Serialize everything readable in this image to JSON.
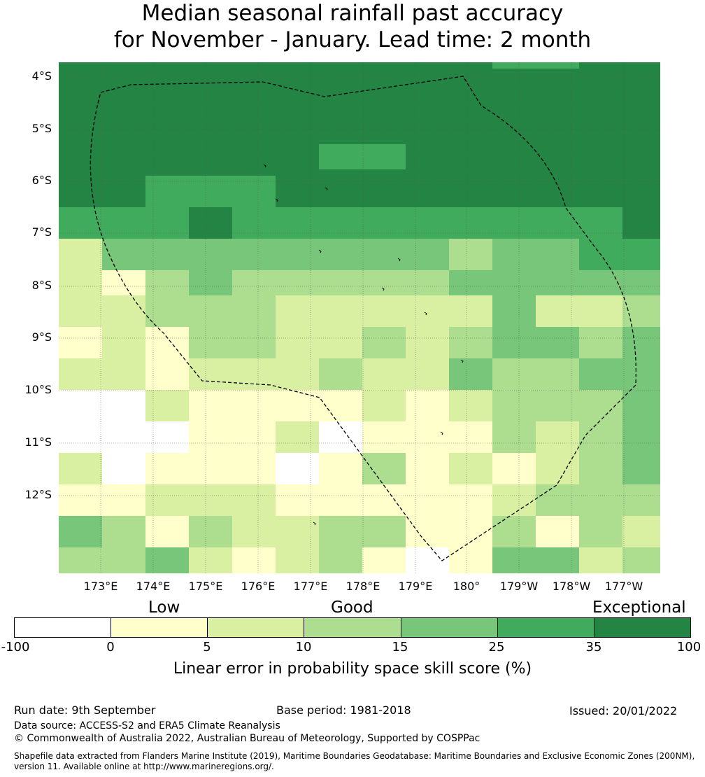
{
  "title": {
    "line1": "Median seasonal rainfall past accuracy",
    "line2": "for November - January. Lead time: 2 month"
  },
  "map": {
    "lat_labels": [
      "4°S",
      "5°S",
      "6°S",
      "7°S",
      "8°S",
      "9°S",
      "10°S",
      "11°S",
      "12°S"
    ],
    "lon_labels": [
      "173°E",
      "174°E",
      "175°E",
      "176°E",
      "177°E",
      "178°E",
      "179°E",
      "180°",
      "179°W",
      "178°W",
      "177°W"
    ],
    "cell_grid": [
      [
        6,
        6,
        6,
        6,
        6,
        6,
        6,
        6,
        6,
        6,
        5,
        5,
        6,
        6
      ],
      [
        6,
        6,
        6,
        6,
        6,
        6,
        6,
        6,
        6,
        6,
        6,
        6,
        6,
        6
      ],
      [
        6,
        6,
        6,
        6,
        6,
        6,
        6,
        6,
        6,
        6,
        6,
        6,
        6,
        6
      ],
      [
        6,
        6,
        6,
        6,
        6,
        6,
        6,
        6,
        6,
        6,
        6,
        6,
        6,
        6
      ],
      [
        6,
        6,
        6,
        6,
        6,
        6,
        6,
        6,
        6,
        6,
        6,
        6,
        6,
        6
      ],
      [
        6,
        6,
        6,
        6,
        6,
        6,
        6,
        6,
        6,
        6,
        6,
        6,
        6,
        6
      ],
      [
        6,
        6,
        6,
        6,
        6,
        6,
        6,
        6,
        6,
        6,
        6,
        6,
        6,
        6
      ],
      [
        6,
        6,
        6,
        6,
        6,
        6,
        6,
        6,
        6,
        6,
        6,
        6,
        6,
        6
      ],
      [
        6,
        6,
        6,
        6,
        6,
        6,
        6,
        6,
        6,
        6,
        6,
        6,
        6,
        6
      ],
      [
        6,
        6,
        6,
        6,
        6,
        6,
        6,
        6,
        6,
        6,
        6,
        6,
        6,
        6
      ],
      [
        6,
        6,
        6,
        6,
        6,
        6,
        6,
        6,
        6,
        6,
        6,
        6,
        6,
        6
      ],
      [
        6,
        6,
        6,
        6,
        6,
        6,
        6,
        6,
        6,
        6,
        6,
        6,
        6,
        6
      ],
      [
        6,
        6,
        6,
        6,
        6,
        6,
        6,
        6,
        6,
        6,
        6,
        6,
        6,
        6
      ],
      [
        6,
        6,
        6,
        6,
        6,
        6,
        5,
        5,
        6,
        6,
        6,
        6,
        6,
        6
      ],
      [
        6,
        6,
        6,
        6,
        6,
        6,
        5,
        5,
        6,
        6,
        6,
        6,
        6,
        6
      ],
      [
        6,
        6,
        6,
        6,
        6,
        6,
        5,
        5,
        6,
        6,
        6,
        6,
        6,
        6
      ],
      [
        6,
        6,
        6,
        6,
        6,
        6,
        5,
        5,
        6,
        6,
        6,
        6,
        6,
        6
      ],
      [
        6,
        6,
        6,
        6,
        6,
        6,
        6,
        6,
        6,
        6,
        6,
        6,
        6,
        6
      ],
      [
        6,
        6,
        5,
        5,
        5,
        6,
        6,
        6,
        6,
        6,
        6,
        6,
        6,
        6
      ],
      [
        6,
        6,
        5,
        5,
        5,
        6,
        6,
        6,
        6,
        6,
        6,
        6,
        6,
        6
      ],
      [
        6,
        6,
        5,
        5,
        5,
        6,
        6,
        6,
        6,
        6,
        6,
        6,
        6,
        6
      ],
      [
        6,
        6,
        5,
        5,
        5,
        6,
        6,
        6,
        6,
        6,
        6,
        6,
        6,
        6
      ],
      [
        6,
        6,
        5,
        5,
        5,
        6,
        6,
        6,
        6,
        6,
        6,
        6,
        6,
        6
      ],
      [
        5,
        5,
        5,
        6,
        5,
        5,
        5,
        5,
        5,
        5,
        5,
        5,
        5,
        6
      ],
      [
        5,
        5,
        5,
        6,
        5,
        5,
        5,
        5,
        5,
        5,
        5,
        5,
        5,
        6
      ],
      [
        5,
        5,
        5,
        6,
        5,
        5,
        5,
        5,
        5,
        5,
        5,
        5,
        5,
        6
      ],
      [
        5,
        5,
        5,
        6,
        5,
        5,
        5,
        5,
        5,
        5,
        5,
        5,
        5,
        6
      ],
      [
        5,
        5,
        5,
        6,
        5,
        5,
        5,
        5,
        5,
        5,
        5,
        5,
        5,
        6
      ],
      [
        2,
        4,
        4,
        4,
        4,
        4,
        4,
        4,
        4,
        3,
        4,
        4,
        5,
        5
      ],
      [
        2,
        4,
        4,
        4,
        4,
        4,
        4,
        4,
        4,
        3,
        4,
        4,
        5,
        5
      ],
      [
        2,
        4,
        4,
        4,
        4,
        4,
        4,
        4,
        4,
        3,
        4,
        4,
        5,
        5
      ],
      [
        2,
        4,
        4,
        4,
        4,
        4,
        4,
        4,
        4,
        3,
        4,
        4,
        5,
        5
      ],
      [
        2,
        4,
        4,
        4,
        4,
        4,
        4,
        4,
        4,
        3,
        4,
        4,
        5,
        5
      ],
      [
        2,
        1,
        3,
        4,
        3,
        3,
        3,
        3,
        3,
        4,
        4,
        4,
        4,
        4
      ],
      [
        2,
        1,
        3,
        4,
        3,
        3,
        3,
        3,
        3,
        4,
        4,
        4,
        4,
        4
      ],
      [
        2,
        1,
        3,
        4,
        3,
        3,
        3,
        3,
        3,
        4,
        4,
        4,
        4,
        4
      ],
      [
        2,
        1,
        3,
        4,
        3,
        3,
        3,
        3,
        3,
        4,
        4,
        4,
        4,
        4
      ],
      [
        2,
        2,
        3,
        3,
        3,
        2,
        2,
        2,
        2,
        2,
        4,
        2,
        2,
        3
      ],
      [
        2,
        2,
        3,
        3,
        3,
        2,
        2,
        2,
        2,
        2,
        4,
        2,
        2,
        3
      ],
      [
        2,
        2,
        3,
        3,
        3,
        2,
        2,
        2,
        2,
        2,
        4,
        2,
        2,
        3
      ],
      [
        2,
        2,
        3,
        3,
        3,
        2,
        2,
        2,
        2,
        2,
        4,
        2,
        2,
        3
      ],
      [
        2,
        2,
        3,
        3,
        3,
        2,
        2,
        2,
        2,
        2,
        4,
        2,
        2,
        3
      ],
      [
        1,
        2,
        1,
        3,
        3,
        2,
        2,
        3,
        2,
        3,
        4,
        4,
        3,
        4
      ],
      [
        1,
        2,
        1,
        3,
        3,
        2,
        2,
        3,
        2,
        3,
        4,
        4,
        3,
        4
      ],
      [
        1,
        2,
        1,
        3,
        3,
        2,
        2,
        3,
        2,
        3,
        4,
        4,
        3,
        4
      ],
      [
        1,
        2,
        1,
        3,
        3,
        2,
        2,
        3,
        2,
        3,
        4,
        4,
        3,
        4
      ],
      [
        1,
        2,
        1,
        3,
        3,
        2,
        2,
        3,
        2,
        3,
        4,
        4,
        3,
        4
      ],
      [
        2,
        2,
        1,
        2,
        2,
        2,
        3,
        2,
        2,
        4,
        3,
        3,
        4,
        4
      ],
      [
        2,
        2,
        1,
        2,
        2,
        2,
        3,
        2,
        2,
        4,
        3,
        3,
        4,
        4
      ],
      [
        2,
        2,
        1,
        2,
        2,
        2,
        3,
        2,
        2,
        4,
        3,
        3,
        4,
        4
      ],
      [
        2,
        2,
        1,
        2,
        2,
        2,
        3,
        2,
        2,
        4,
        3,
        3,
        4,
        4
      ],
      [
        2,
        2,
        1,
        2,
        2,
        2,
        3,
        2,
        2,
        4,
        3,
        3,
        4,
        4
      ],
      [
        0,
        0,
        2,
        1,
        1,
        1,
        1,
        2,
        1,
        2,
        3,
        3,
        3,
        4
      ],
      [
        0,
        0,
        2,
        1,
        1,
        1,
        1,
        2,
        1,
        2,
        3,
        3,
        3,
        4
      ],
      [
        0,
        0,
        2,
        1,
        1,
        1,
        1,
        2,
        1,
        2,
        3,
        3,
        3,
        4
      ],
      [
        0,
        0,
        2,
        1,
        1,
        1,
        1,
        2,
        1,
        2,
        3,
        3,
        3,
        4
      ],
      [
        0,
        0,
        2,
        1,
        1,
        1,
        1,
        2,
        1,
        2,
        3,
        3,
        3,
        4
      ],
      [
        0,
        0,
        0,
        1,
        1,
        2,
        0,
        1,
        1,
        1,
        3,
        2,
        3,
        4
      ],
      [
        0,
        0,
        0,
        1,
        1,
        2,
        0,
        1,
        1,
        1,
        3,
        2,
        3,
        4
      ],
      [
        0,
        0,
        0,
        1,
        1,
        2,
        0,
        1,
        1,
        1,
        3,
        2,
        3,
        4
      ],
      [
        0,
        0,
        0,
        1,
        1,
        2,
        0,
        1,
        1,
        1,
        3,
        2,
        3,
        4
      ],
      [
        0,
        0,
        0,
        1,
        1,
        2,
        0,
        1,
        1,
        1,
        3,
        2,
        3,
        4
      ],
      [
        2,
        0,
        1,
        1,
        1,
        0,
        1,
        3,
        1,
        2,
        1,
        2,
        3,
        4
      ],
      [
        2,
        0,
        1,
        1,
        1,
        0,
        1,
        3,
        1,
        2,
        1,
        2,
        3,
        4
      ],
      [
        2,
        0,
        1,
        1,
        1,
        0,
        1,
        3,
        1,
        2,
        1,
        2,
        3,
        4
      ],
      [
        2,
        0,
        1,
        1,
        1,
        0,
        1,
        3,
        1,
        2,
        1,
        2,
        3,
        4
      ],
      [
        2,
        0,
        1,
        1,
        1,
        0,
        1,
        3,
        1,
        2,
        1,
        2,
        3,
        4
      ],
      [
        1,
        1,
        2,
        2,
        2,
        1,
        1,
        1,
        1,
        1,
        2,
        3,
        3,
        3
      ],
      [
        1,
        1,
        2,
        2,
        2,
        1,
        1,
        1,
        1,
        1,
        2,
        3,
        3,
        3
      ],
      [
        1,
        1,
        2,
        2,
        2,
        1,
        1,
        1,
        1,
        1,
        2,
        3,
        3,
        3
      ],
      [
        1,
        1,
        2,
        2,
        2,
        1,
        1,
        1,
        1,
        1,
        2,
        3,
        3,
        3
      ],
      [
        1,
        1,
        2,
        2,
        2,
        1,
        1,
        1,
        1,
        1,
        2,
        3,
        3,
        3
      ],
      [
        4,
        3,
        1,
        3,
        2,
        2,
        3,
        3,
        1,
        1,
        3,
        1,
        3,
        2
      ],
      [
        4,
        3,
        1,
        3,
        2,
        2,
        3,
        3,
        1,
        1,
        3,
        1,
        3,
        2
      ],
      [
        4,
        3,
        1,
        3,
        2,
        2,
        3,
        3,
        1,
        1,
        3,
        1,
        3,
        2
      ],
      [
        4,
        3,
        1,
        3,
        2,
        2,
        3,
        3,
        1,
        1,
        3,
        1,
        3,
        2
      ],
      [
        4,
        3,
        1,
        3,
        2,
        2,
        3,
        3,
        1,
        1,
        3,
        1,
        3,
        2
      ],
      [
        3,
        3,
        4,
        2,
        1,
        2,
        3,
        1,
        0,
        1,
        4,
        4,
        2,
        3
      ],
      [
        3,
        3,
        4,
        2,
        1,
        2,
        3,
        1,
        0,
        1,
        4,
        4,
        2,
        3
      ],
      [
        3,
        3,
        4,
        2,
        1,
        2,
        3,
        1,
        0,
        1,
        4,
        4,
        2,
        3
      ],
      [
        3,
        3,
        4,
        2,
        1,
        2,
        3,
        1,
        0,
        1,
        4,
        4,
        2,
        3
      ]
    ]
  },
  "categories": {
    "low": "Low",
    "good": "Good",
    "exceptional": "Exceptional"
  },
  "colorbar": {
    "ticks": [
      "-100",
      "0",
      "5",
      "10",
      "15",
      "25",
      "35",
      "100"
    ],
    "colors": [
      "#ffffff",
      "#ffffcc",
      "#d9f0a3",
      "#addd8e",
      "#78c679",
      "#41ab5d",
      "#238443"
    ],
    "label": "Linear error in probability space skill score (%)"
  },
  "footer": {
    "run_date": "Run date: 9th September",
    "base_period": "Base period: 1981-2018",
    "issued": "Issued: 20/01/2022",
    "data_source": "Data source: ACCESS-S2 and ERA5 Climate Reanalysis",
    "copyright": "© Commonwealth of Australia 2022, Australian Bureau of Meteorology, Supported by COSPPac",
    "shapefile_line1": "Shapefile data extracted from Flanders Marine Institute (2019), Maritime Boundaries Geodatabase: Maritime Boundaries and Exclusive Economic Zones (200NM),",
    "shapefile_line2": "version 11. Available online at http://www.marineregions.org/."
  }
}
